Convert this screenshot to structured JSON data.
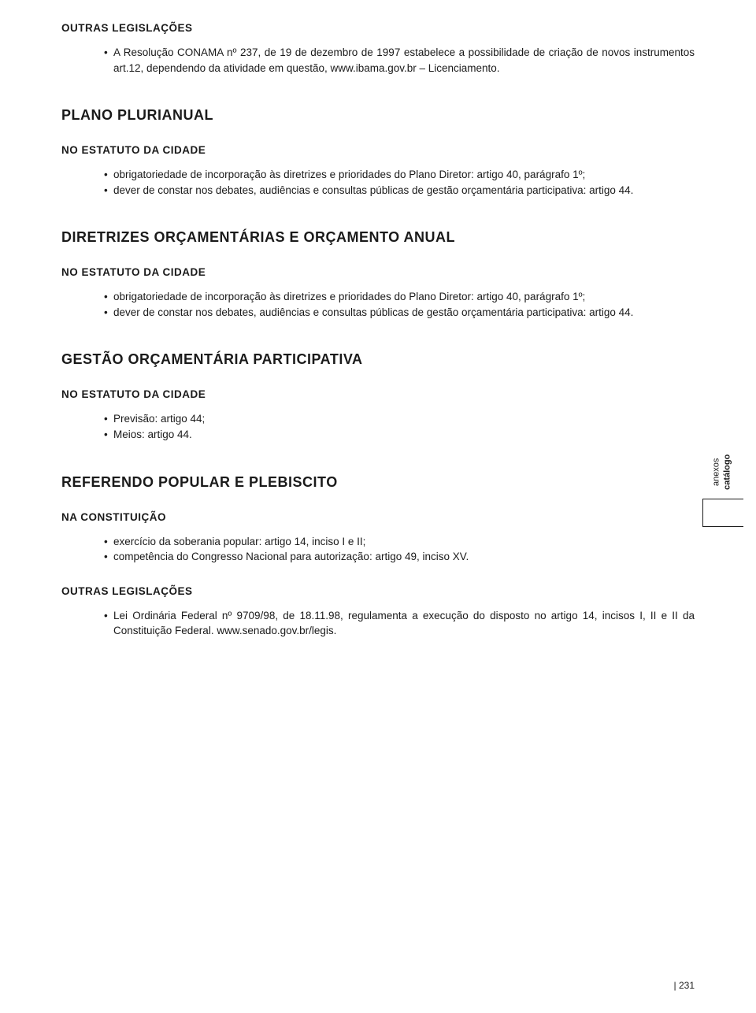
{
  "colors": {
    "text": "#1a1a1a",
    "background": "#ffffff"
  },
  "typography": {
    "body_font_size": 13.5,
    "section_heading_font_size": 18,
    "sub_heading_font_size": 13.5,
    "side_tab_font_size": 11,
    "page_number_font_size": 12,
    "line_height": 1.45
  },
  "sections": [
    {
      "sub_heading": "OUTRAS LEGISLAÇÕES",
      "sub_heading_class": "first-sub",
      "bullets": [
        "A Resolução CONAMA nº 237, de 19 de dezembro de 1997 estabelece a possibilidade de criação de novos instrumentos art.12, dependendo da atividade em questão, www.ibama.gov.br – Licenciamento."
      ]
    },
    {
      "heading": "PLANO PLURIANUAL",
      "sub_heading": "NO ESTATUTO DA CIDADE",
      "bullets": [
        "obrigatoriedade de incorporação às diretrizes e prioridades do Plano Diretor: artigo 40, parágrafo 1º;",
        "dever de constar nos debates, audiências e consultas públicas de gestão orçamentária participativa: artigo 44."
      ]
    },
    {
      "heading": "DIRETRIZES ORÇAMENTÁRIAS E ORÇAMENTO ANUAL",
      "sub_heading": "NO ESTATUTO DA CIDADE",
      "bullets": [
        "obrigatoriedade de incorporação às diretrizes e prioridades do Plano Diretor: artigo 40, parágrafo 1º;",
        "dever de constar nos debates, audiências e consultas públicas de gestão orçamentária participativa: artigo 44."
      ]
    },
    {
      "heading": "GESTÃO ORÇAMENTÁRIA PARTICIPATIVA",
      "sub_heading": "NO ESTATUTO DA CIDADE",
      "bullets": [
        "Previsão: artigo 44;",
        "Meios: artigo 44."
      ]
    },
    {
      "heading": "REFERENDO POPULAR E PLEBISCITO",
      "sub_heading": "NA CONSTITUIÇÃO",
      "bullets": [
        "exercício da soberania popular: artigo 14, inciso I e II;",
        "competência do Congresso Nacional para autorização: artigo 49, inciso XV."
      ],
      "sub_heading_2": "OUTRAS LEGISLAÇÕES",
      "bullets_2": [
        "Lei Ordinária Federal nº 9709/98, de 18.11.98, regulamenta a execução do disposto no artigo 14, incisos I, II e II da Constituição Federal. www.senado.gov.br/legis."
      ]
    }
  ],
  "side_tab": {
    "word1": "anexos",
    "word2": "catálogo"
  },
  "page_number": "231"
}
